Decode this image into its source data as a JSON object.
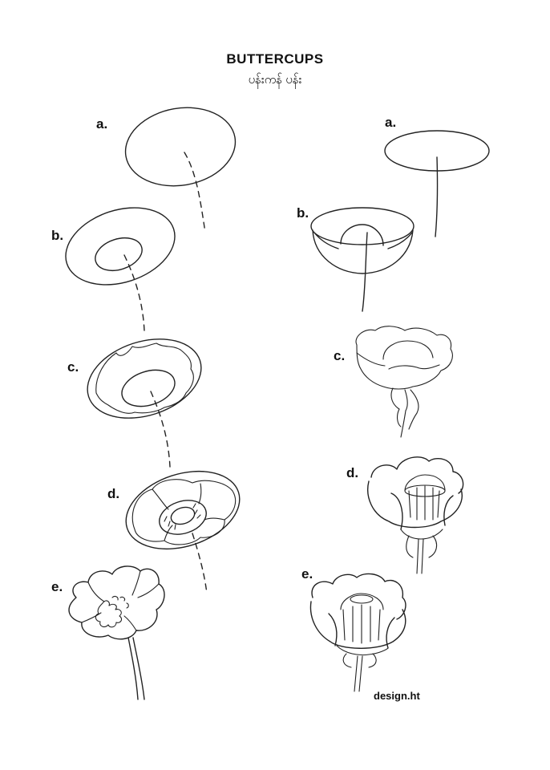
{
  "header": {
    "title": "BUTTERCUPS",
    "subtitle": "ပန်းကန် ပန်း"
  },
  "left_steps": [
    "a.",
    "b.",
    "c.",
    "d.",
    "e."
  ],
  "right_steps": [
    "a.",
    "b.",
    "c.",
    "d.",
    "e."
  ],
  "credit": "design.ht"
}
